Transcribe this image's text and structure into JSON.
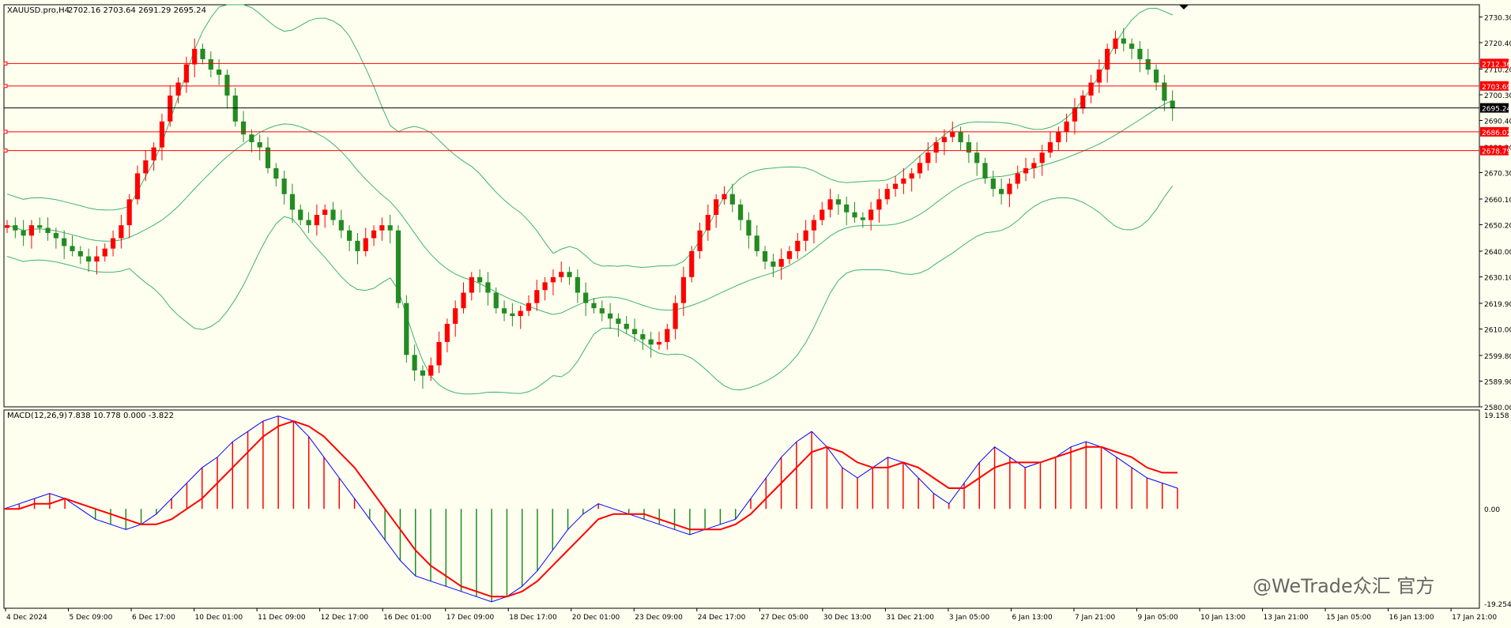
{
  "header": {
    "symbol": "XAUUSD.pro,H4",
    "ohlc": "2702.16 2703.64 2691.29 2695.24"
  },
  "macd_header": {
    "label": "MACD(12,26,9)",
    "values": "7.838 10.778 0.000 -3.822"
  },
  "price_axis": {
    "ticks": [
      "2730.30",
      "2720.40",
      "2710.20",
      "2700.30",
      "2690.40",
      "2680.20",
      "2670.30",
      "2660.10",
      "2650.20",
      "2640.00",
      "2630.10",
      "2619.90",
      "2610.00",
      "2599.80",
      "2589.90",
      "2580.00"
    ]
  },
  "price_labels": {
    "line_1": "2712.36",
    "line_2": "2703.69",
    "current": "2695.24",
    "line_3": "2686.02",
    "line_4": "2678.79"
  },
  "macd_axis": {
    "top": "19.158",
    "zero": "0.00",
    "bottom": "-19.254"
  },
  "time_axis": [
    "4 Dec 2024",
    "5 Dec 09:00",
    "6 Dec 17:00",
    "10 Dec 01:00",
    "11 Dec 09:00",
    "12 Dec 17:00",
    "16 Dec 01:00",
    "17 Dec 09:00",
    "18 Dec 17:00",
    "20 Dec 01:00",
    "23 Dec 09:00",
    "24 Dec 17:00",
    "27 Dec 05:00",
    "30 Dec 13:00",
    "31 Dec 21:00",
    "3 Jan 05:00",
    "6 Jan 13:00",
    "7 Jan 21:00",
    "9 Jan 05:00",
    "10 Jan 13:00",
    "13 Jan 21:00",
    "15 Jan 05:00",
    "16 Jan 13:00",
    "17 Jan 21:00"
  ],
  "watermark": "@WeTrade众汇 官方",
  "colors": {
    "background": "#fffff0",
    "bull": "#ff0000",
    "bear": "#228b22",
    "bands": "#3cb371",
    "macd_line": "#0000ff",
    "signal_line": "#ff0000",
    "hline": "#ff0000",
    "current_line": "#000000"
  },
  "chart_data": {
    "type": "candlestick",
    "symbol": "XAUUSD.pro",
    "timeframe": "H4",
    "y_range": [
      2580.0,
      2735.0
    ],
    "horizontal_lines": [
      2712.36,
      2703.69,
      2686.02,
      2678.79
    ],
    "current_price": 2695.24,
    "close_series": [
      2650,
      2648,
      2646,
      2650,
      2649,
      2647,
      2645,
      2642,
      2640,
      2638,
      2636,
      2638,
      2641,
      2645,
      2650,
      2660,
      2670,
      2675,
      2680,
      2690,
      2700,
      2705,
      2712,
      2718,
      2714,
      2710,
      2708,
      2700,
      2690,
      2685,
      2682,
      2680,
      2672,
      2668,
      2662,
      2656,
      2652,
      2650,
      2654,
      2656,
      2652,
      2648,
      2644,
      2640,
      2645,
      2648,
      2650,
      2648,
      2620,
      2600,
      2594,
      2592,
      2596,
      2605,
      2612,
      2618,
      2624,
      2630,
      2628,
      2624,
      2618,
      2616,
      2615,
      2617,
      2620,
      2625,
      2628,
      2630,
      2632,
      2630,
      2624,
      2620,
      2618,
      2616,
      2614,
      2612,
      2610,
      2608,
      2606,
      2604,
      2605,
      2610,
      2620,
      2630,
      2640,
      2648,
      2654,
      2660,
      2662,
      2658,
      2652,
      2646,
      2640,
      2636,
      2634,
      2637,
      2640,
      2644,
      2648,
      2652,
      2656,
      2660,
      2658,
      2655,
      2653,
      2652,
      2656,
      2660,
      2664,
      2666,
      2668,
      2670,
      2674,
      2678,
      2682,
      2684,
      2686,
      2682,
      2678,
      2674,
      2668,
      2664,
      2662,
      2666,
      2670,
      2672,
      2674,
      2678,
      2682,
      2686,
      2690,
      2695,
      2700,
      2705,
      2710,
      2718,
      2722,
      2720,
      2718,
      2714,
      2710,
      2705,
      2698,
      2695.24
    ],
    "macd": {
      "main_approx": [
        0,
        1,
        2,
        3,
        2,
        0,
        -2,
        -3,
        -4,
        -3,
        -1,
        2,
        5,
        8,
        10,
        13,
        15,
        17,
        18,
        17,
        14,
        10,
        6,
        2,
        -2,
        -6,
        -10,
        -13,
        -14,
        -15,
        -16,
        -17,
        -18,
        -17,
        -15,
        -12,
        -8,
        -4,
        -1,
        1,
        0,
        -1,
        -2,
        -3,
        -4,
        -5,
        -4,
        -3,
        -2,
        2,
        6,
        10,
        13,
        15,
        12,
        8,
        6,
        8,
        10,
        9,
        6,
        3,
        1,
        5,
        9,
        12,
        10,
        8,
        9,
        10,
        12,
        13,
        12,
        10,
        8,
        6,
        5,
        4
      ],
      "signal_approx": [
        0,
        0,
        1,
        1,
        2,
        1,
        0,
        -1,
        -2,
        -3,
        -3,
        -2,
        0,
        2,
        5,
        8,
        11,
        14,
        16,
        17,
        16,
        14,
        11,
        8,
        4,
        0,
        -4,
        -8,
        -11,
        -13,
        -15,
        -16,
        -17,
        -17,
        -16,
        -14,
        -11,
        -8,
        -5,
        -2,
        -1,
        -1,
        -1,
        -2,
        -3,
        -4,
        -4,
        -4,
        -3,
        -1,
        2,
        5,
        8,
        11,
        12,
        11,
        9,
        8,
        8,
        9,
        8,
        6,
        4,
        4,
        6,
        8,
        9,
        9,
        9,
        10,
        11,
        12,
        12,
        11,
        10,
        8,
        7,
        7
      ],
      "zero_line": 0,
      "range": [
        -19.254,
        19.158
      ]
    }
  }
}
